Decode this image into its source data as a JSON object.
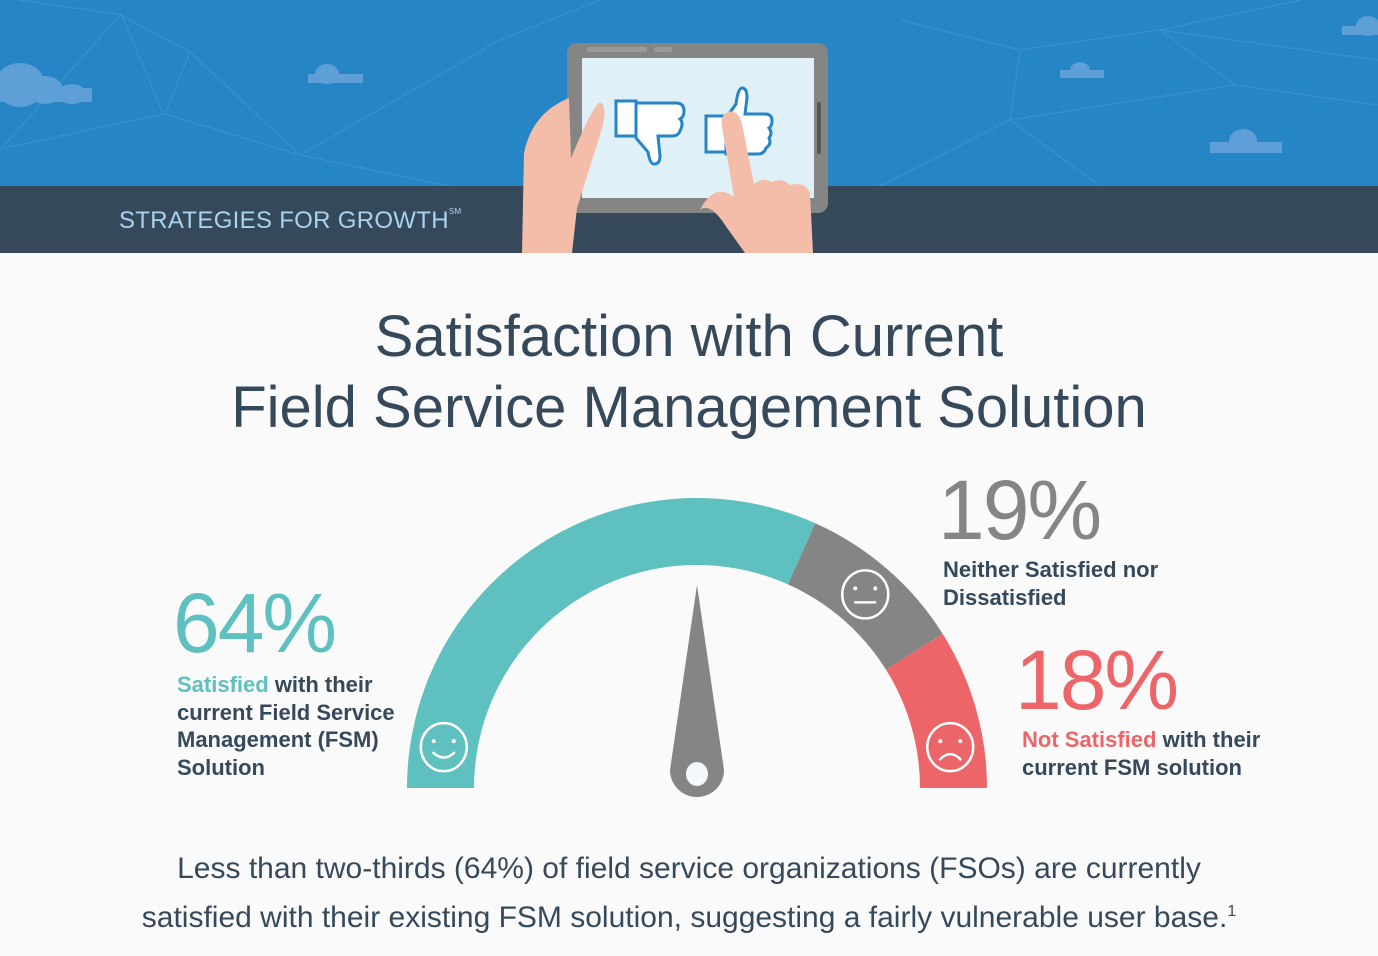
{
  "header": {
    "brand": "STRATEGIES FOR GROWTH",
    "brand_mark": "SM",
    "colors": {
      "sky": "#2585c5",
      "band": "#36495a"
    }
  },
  "title": {
    "line1": "Satisfaction with Current",
    "line2": "Field Service Management Solution"
  },
  "chart_data": {
    "type": "gauge",
    "series": [
      {
        "name": "Satisfied",
        "value": 64,
        "label": "64%",
        "color": "#5fc1bf",
        "icon": "smile-face-icon"
      },
      {
        "name": "Neither Satisfied nor Dissatisfied",
        "value": 19,
        "label": "19%",
        "color": "#858585",
        "icon": "neutral-face-icon"
      },
      {
        "name": "Not Satisfied",
        "value": 18,
        "label": "18%",
        "color": "#ec6669",
        "icon": "sad-face-icon"
      }
    ]
  },
  "labels": {
    "satisfied": {
      "highlight": "Satisfied",
      "rest1": " with their",
      "line2": "current Field Service",
      "line3": "Management (FSM)",
      "line4": "Solution"
    },
    "neutral": {
      "line1": "Neither Satisfied nor",
      "line2": "Dissatisfied"
    },
    "not_satisfied": {
      "highlight": "Not Satisfied",
      "rest1": " with their",
      "line2": "current FSM solution"
    }
  },
  "footer": {
    "line1": "Less than two-thirds (64%) of field service organizations (FSOs) are currently",
    "line2": "satisfied with their existing FSM solution, suggesting a fairly vulnerable user base.",
    "footnote": "1"
  }
}
